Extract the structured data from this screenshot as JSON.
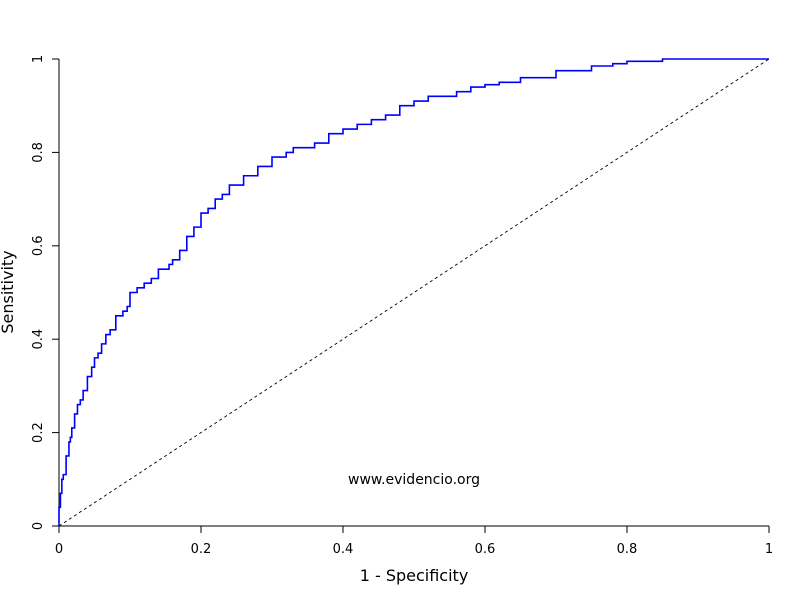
{
  "chart_data": {
    "type": "line",
    "title": "",
    "xlabel": "1 - Specificity",
    "ylabel": "Sensitivity",
    "xlim": [
      0,
      1
    ],
    "ylim": [
      0,
      1
    ],
    "x_ticks": [
      "0",
      "0.2",
      "0.4",
      "0.6",
      "0.8",
      "1"
    ],
    "y_ticks": [
      "0",
      "0.2",
      "0.4",
      "0.6",
      "0.8",
      "1"
    ],
    "x_tick_values": [
      0,
      0.2,
      0.4,
      0.6,
      0.8,
      1
    ],
    "y_tick_values": [
      0,
      0.2,
      0.4,
      0.6,
      0.8,
      1
    ],
    "grid": false,
    "legend": "none",
    "annotation": "www.evidencio.org",
    "series": [
      {
        "color": "#0000ff",
        "style": "solid",
        "x": [
          0,
          0.002,
          0.004,
          0.006,
          0.01,
          0.014,
          0.016,
          0.018,
          0.022,
          0.026,
          0.03,
          0.034,
          0.04,
          0.046,
          0.05,
          0.055,
          0.06,
          0.066,
          0.072,
          0.08,
          0.09,
          0.096,
          0.1,
          0.11,
          0.12,
          0.13,
          0.14,
          0.155,
          0.16,
          0.17,
          0.18,
          0.19,
          0.2,
          0.21,
          0.22,
          0.23,
          0.24,
          0.26,
          0.28,
          0.3,
          0.32,
          0.33,
          0.36,
          0.38,
          0.4,
          0.42,
          0.44,
          0.46,
          0.48,
          0.5,
          0.52,
          0.56,
          0.58,
          0.6,
          0.62,
          0.65,
          0.7,
          0.75,
          0.78,
          0.8,
          0.85,
          0.9,
          0.95,
          1.0
        ],
        "y": [
          0,
          0.04,
          0.07,
          0.1,
          0.11,
          0.15,
          0.18,
          0.19,
          0.21,
          0.24,
          0.26,
          0.27,
          0.29,
          0.32,
          0.34,
          0.36,
          0.37,
          0.39,
          0.41,
          0.42,
          0.45,
          0.46,
          0.47,
          0.5,
          0.51,
          0.52,
          0.53,
          0.55,
          0.56,
          0.57,
          0.59,
          0.62,
          0.64,
          0.67,
          0.68,
          0.7,
          0.71,
          0.73,
          0.75,
          0.77,
          0.79,
          0.8,
          0.81,
          0.82,
          0.84,
          0.85,
          0.86,
          0.87,
          0.88,
          0.9,
          0.91,
          0.92,
          0.93,
          0.94,
          0.945,
          0.95,
          0.96,
          0.975,
          0.985,
          0.99,
          0.995,
          1.0,
          1.0,
          1.0
        ]
      },
      {
        "color": "#000000",
        "style": "dashed",
        "x": [
          0,
          1
        ],
        "y": [
          0,
          1
        ]
      }
    ]
  }
}
